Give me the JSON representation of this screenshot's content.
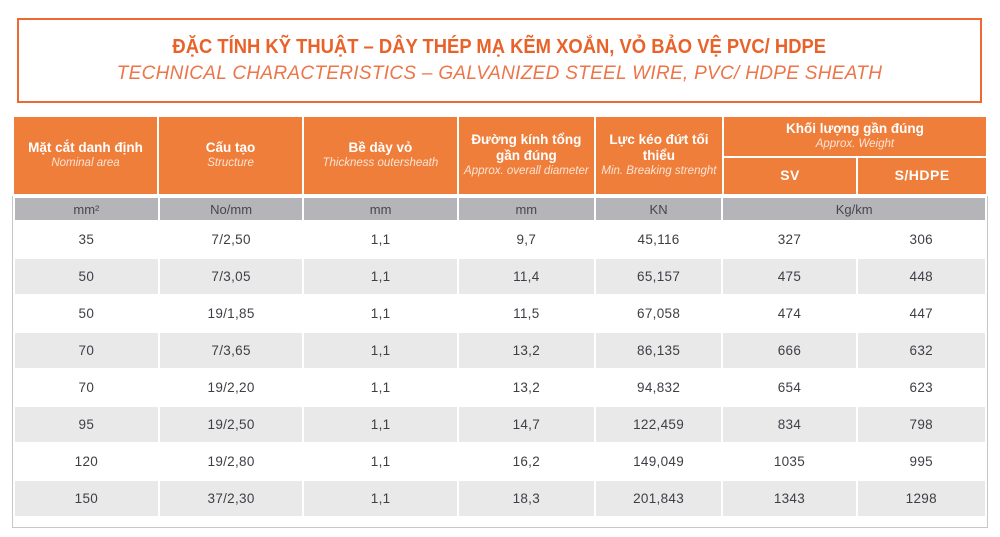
{
  "header": {
    "title_vi": "ĐẶC TÍNH KỸ THUẬT – DÂY THÉP MẠ KẼM XOẮN, VỎ BẢO VỆ PVC/ HDPE",
    "title_en": "TECHNICAL CHARACTERISTICS – GALVANIZED STEEL WIRE, PVC/ HDPE SHEATH"
  },
  "colors": {
    "accent_orange": "#EF7E3A",
    "title_text_orange": "#E8622A",
    "subtitle_text_orange": "#EC7549",
    "unit_row_gray": "#B5B5B9",
    "alt_row_gray": "#E9E9EA",
    "body_text_gray": "#3E3E45",
    "outer_border_gray": "#C7C7CB"
  },
  "table": {
    "columns": [
      {
        "vi": "Mặt cắt danh định",
        "en": "Nominal area",
        "unit": "mm²"
      },
      {
        "vi": "Cấu tạo",
        "en": "Structure",
        "unit": "No/mm"
      },
      {
        "vi": "Bề dày vỏ",
        "en": "Thickness outersheath",
        "unit": "mm"
      },
      {
        "vi": "Đường kính tổng gần đúng",
        "en": "Approx. overall diameter",
        "unit": "mm"
      },
      {
        "vi": "Lực kéo đứt tối thiểu",
        "en": "Min. Breaking strenght",
        "unit": "KN"
      }
    ],
    "weight_group": {
      "vi": "Khối lượng gần đúng",
      "en": "Approx. Weight",
      "sub_columns": [
        "SV",
        "S/HDPE"
      ],
      "unit": "Kg/km"
    },
    "rows": [
      [
        "35",
        "7/2,50",
        "1,1",
        "9,7",
        "45,116",
        "327",
        "306"
      ],
      [
        "50",
        "7/3,05",
        "1,1",
        "11,4",
        "65,157",
        "475",
        "448"
      ],
      [
        "50",
        "19/1,85",
        "1,1",
        "11,5",
        "67,058",
        "474",
        "447"
      ],
      [
        "70",
        "7/3,65",
        "1,1",
        "13,2",
        "86,135",
        "666",
        "632"
      ],
      [
        "70",
        "19/2,20",
        "1,1",
        "13,2",
        "94,832",
        "654",
        "623"
      ],
      [
        "95",
        "19/2,50",
        "1,1",
        "14,7",
        "122,459",
        "834",
        "798"
      ],
      [
        "120",
        "19/2,80",
        "1,1",
        "16,2",
        "149,049",
        "1035",
        "995"
      ],
      [
        "150",
        "37/2,30",
        "1,1",
        "18,3",
        "201,843",
        "1343",
        "1298"
      ]
    ]
  }
}
